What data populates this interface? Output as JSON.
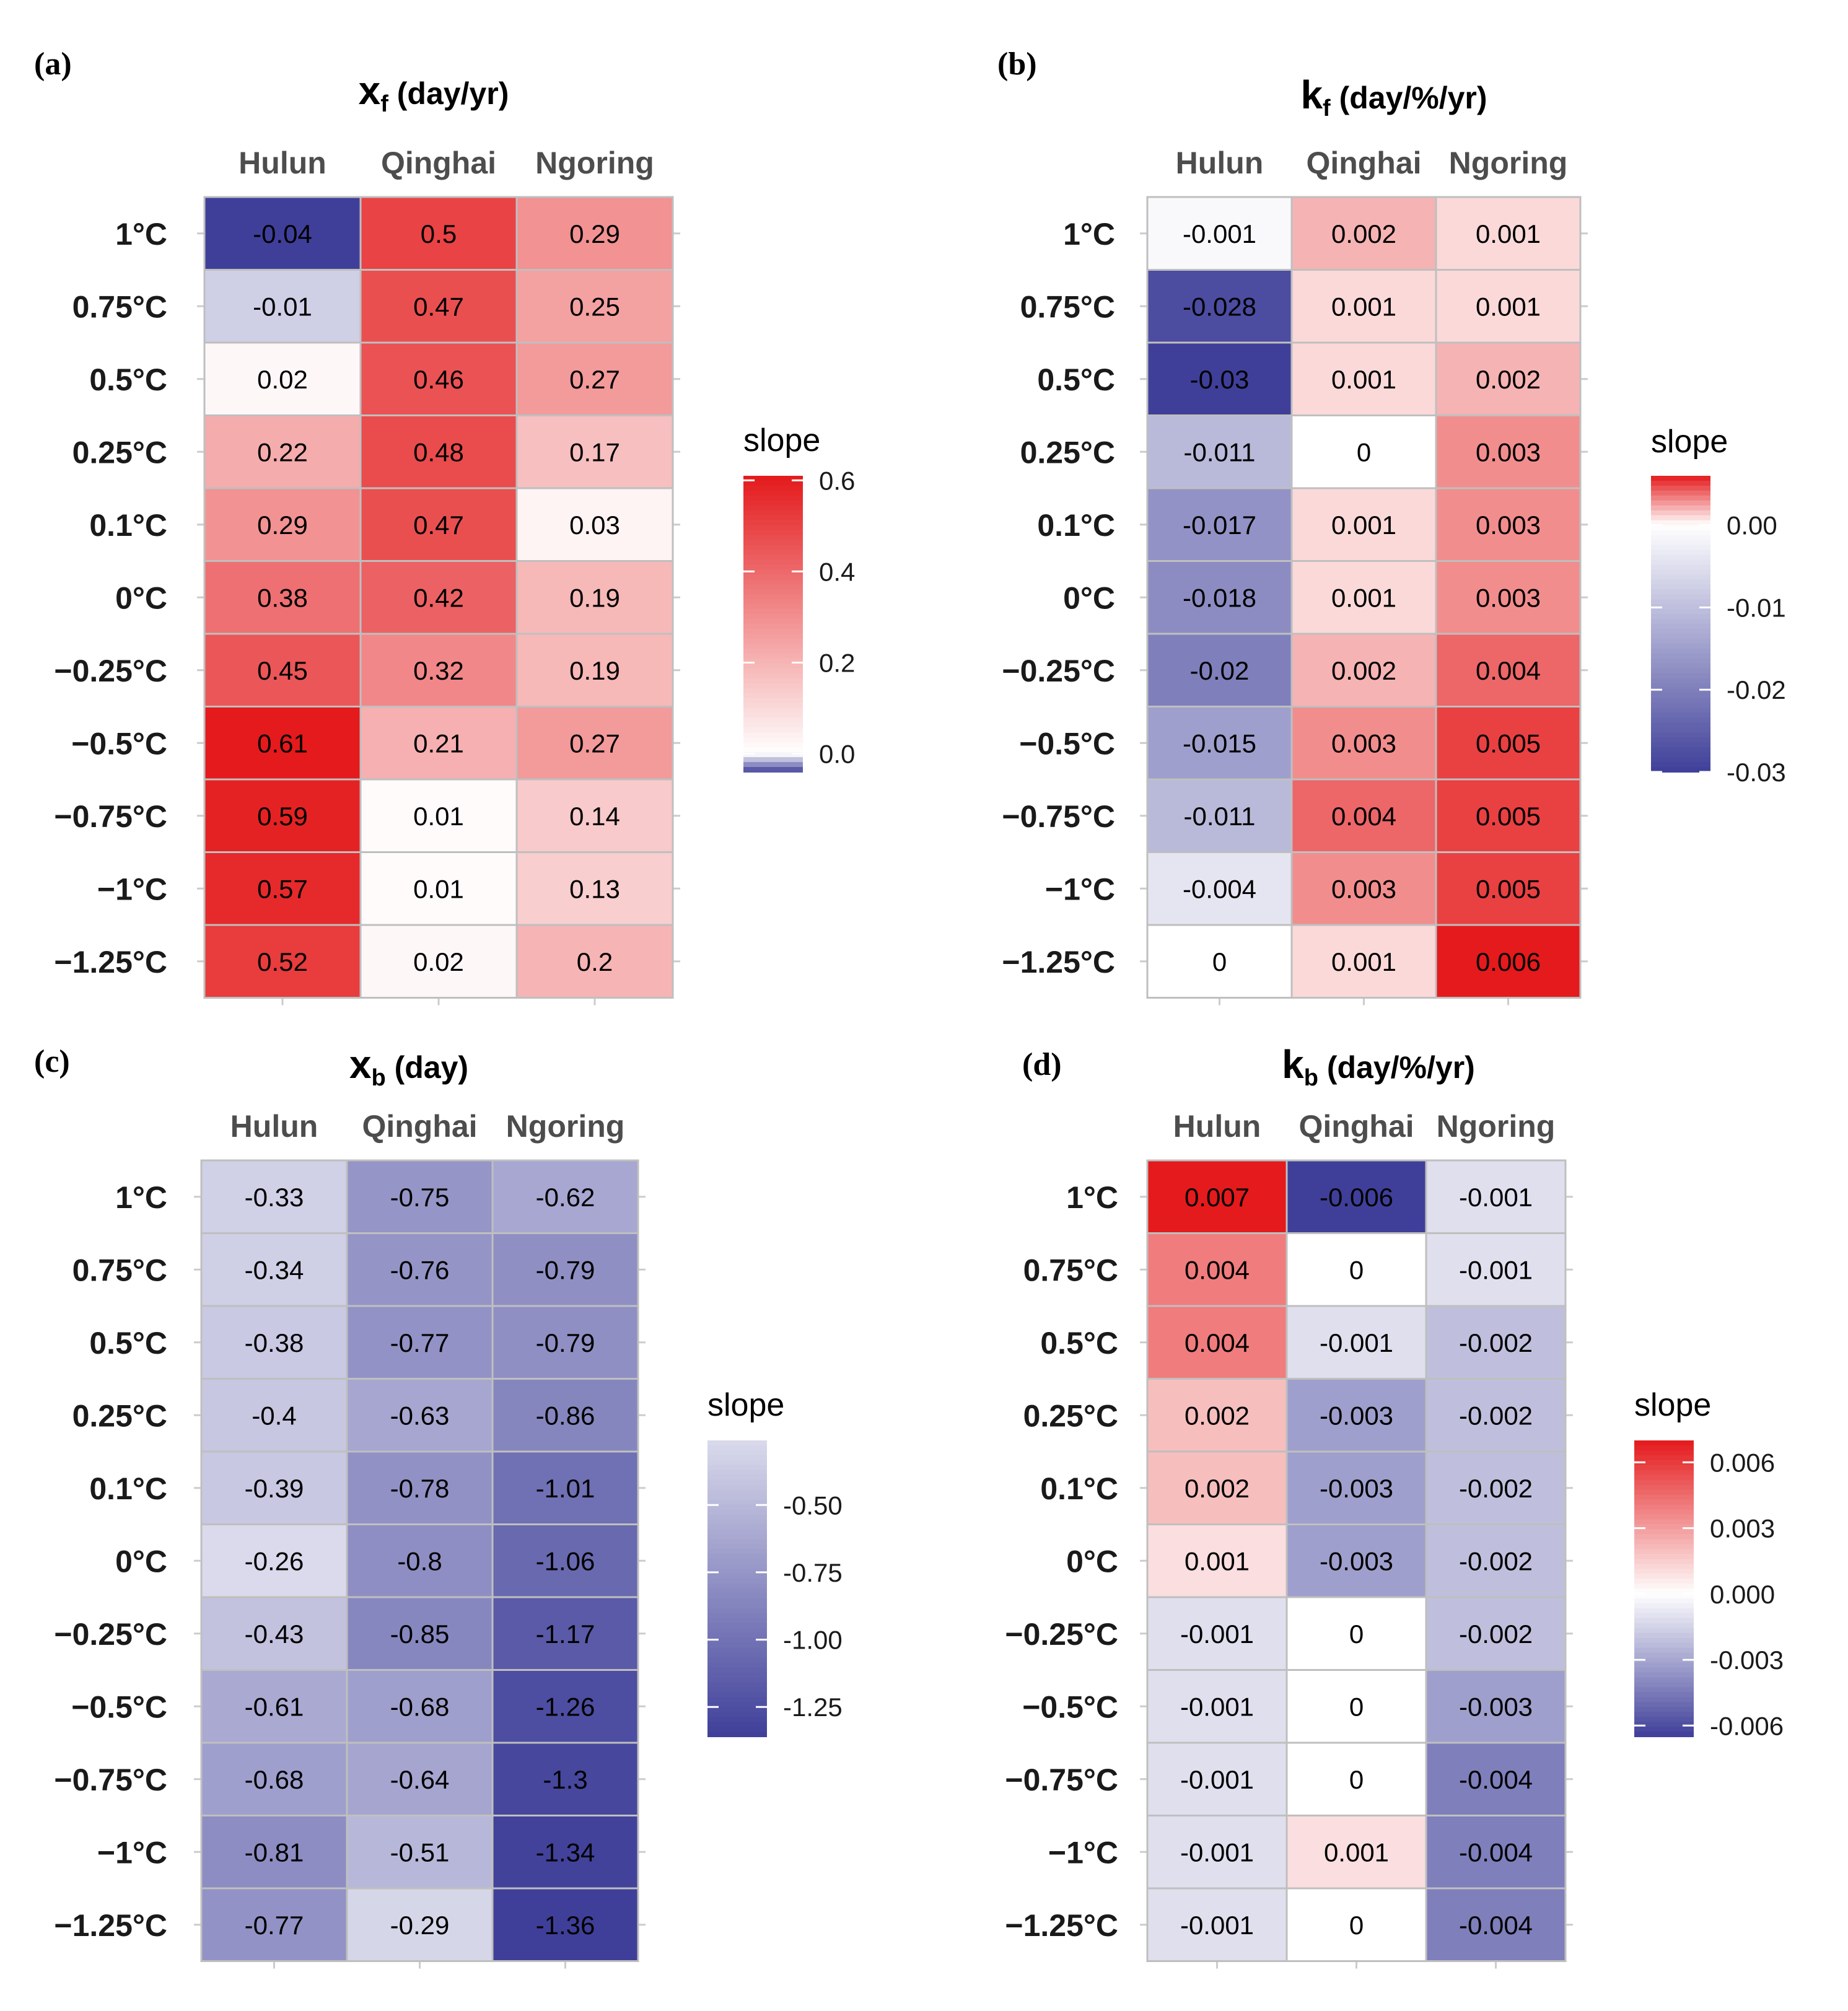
{
  "chart_data": [
    {
      "panel_label": "(a)",
      "type": "heatmap",
      "title": "x",
      "title_sub": "f",
      "title_unit": " (day/yr)",
      "columns": [
        "Hulun",
        "Qinghai",
        "Ngoring"
      ],
      "rows": [
        "1°C",
        "0.75°C",
        "0.5°C",
        "0.25°C",
        "0.1°C",
        "0°C",
        "−0.25°C",
        "−0.5°C",
        "−0.75°C",
        "−1°C",
        "−1.25°C"
      ],
      "values": [
        [
          -0.04,
          0.5,
          0.29
        ],
        [
          -0.01,
          0.47,
          0.25
        ],
        [
          0.02,
          0.46,
          0.27
        ],
        [
          0.22,
          0.48,
          0.17
        ],
        [
          0.29,
          0.47,
          0.03
        ],
        [
          0.38,
          0.42,
          0.19
        ],
        [
          0.45,
          0.32,
          0.19
        ],
        [
          0.61,
          0.21,
          0.27
        ],
        [
          0.59,
          0.01,
          0.14
        ],
        [
          0.57,
          0.01,
          0.13
        ],
        [
          0.52,
          0.02,
          0.2
        ]
      ],
      "value_labels": [
        [
          "-0.04",
          "0.5",
          "0.29"
        ],
        [
          "-0.01",
          "0.47",
          "0.25"
        ],
        [
          "0.02",
          "0.46",
          "0.27"
        ],
        [
          "0.22",
          "0.48",
          "0.17"
        ],
        [
          "0.29",
          "0.47",
          "0.03"
        ],
        [
          "0.38",
          "0.42",
          "0.19"
        ],
        [
          "0.45",
          "0.32",
          "0.19"
        ],
        [
          "0.61",
          "0.21",
          "0.27"
        ],
        [
          "0.59",
          "0.01",
          "0.14"
        ],
        [
          "0.57",
          "0.01",
          "0.13"
        ],
        [
          "0.52",
          "0.02",
          "0.2"
        ]
      ],
      "legend": {
        "title": "slope",
        "min": -0.04,
        "max": 0.61,
        "ticks": [
          0.6,
          0.4,
          0.2,
          0.0
        ],
        "tick_labels": [
          "0.6",
          "0.4",
          "0.2",
          "0.0"
        ]
      }
    },
    {
      "panel_label": "(b)",
      "type": "heatmap",
      "title": "k",
      "title_sub": "f",
      "title_unit": " (day/%/yr)",
      "columns": [
        "Hulun",
        "Qinghai",
        "Ngoring"
      ],
      "rows": [
        "1°C",
        "0.75°C",
        "0.5°C",
        "0.25°C",
        "0.1°C",
        "0°C",
        "−0.25°C",
        "−0.5°C",
        "−0.75°C",
        "−1°C",
        "−1.25°C"
      ],
      "values": [
        [
          -0.001,
          0.002,
          0.001
        ],
        [
          -0.028,
          0.001,
          0.001
        ],
        [
          -0.03,
          0.001,
          0.002
        ],
        [
          -0.011,
          0,
          0.003
        ],
        [
          -0.017,
          0.001,
          0.003
        ],
        [
          -0.018,
          0.001,
          0.003
        ],
        [
          -0.02,
          0.002,
          0.004
        ],
        [
          -0.015,
          0.003,
          0.005
        ],
        [
          -0.011,
          0.004,
          0.005
        ],
        [
          -0.004,
          0.003,
          0.005
        ],
        [
          0,
          0.001,
          0.006
        ]
      ],
      "value_labels": [
        [
          "-0.001",
          "0.002",
          "0.001"
        ],
        [
          "-0.028",
          "0.001",
          "0.001"
        ],
        [
          "-0.03",
          "0.001",
          "0.002"
        ],
        [
          "-0.011",
          "0",
          "0.003"
        ],
        [
          "-0.017",
          "0.001",
          "0.003"
        ],
        [
          "-0.018",
          "0.001",
          "0.003"
        ],
        [
          "-0.02",
          "0.002",
          "0.004"
        ],
        [
          "-0.015",
          "0.003",
          "0.005"
        ],
        [
          "-0.011",
          "0.004",
          "0.005"
        ],
        [
          "-0.004",
          "0.003",
          "0.005"
        ],
        [
          "0",
          "0.001",
          "0.006"
        ]
      ],
      "legend": {
        "title": "slope",
        "min": -0.03,
        "max": 0.006,
        "ticks": [
          0.0,
          -0.01,
          -0.02,
          -0.03
        ],
        "tick_labels": [
          "0.00",
          "-0.01",
          "-0.02",
          "-0.03"
        ]
      }
    },
    {
      "panel_label": "(c)",
      "type": "heatmap",
      "title": "x",
      "title_sub": "b",
      "title_unit": " (day)",
      "columns": [
        "Hulun",
        "Qinghai",
        "Ngoring"
      ],
      "rows": [
        "1°C",
        "0.75°C",
        "0.5°C",
        "0.25°C",
        "0.1°C",
        "0°C",
        "−0.25°C",
        "−0.5°C",
        "−0.75°C",
        "−1°C",
        "−1.25°C"
      ],
      "values": [
        [
          -0.33,
          -0.75,
          -0.62
        ],
        [
          -0.34,
          -0.76,
          -0.79
        ],
        [
          -0.38,
          -0.77,
          -0.79
        ],
        [
          -0.4,
          -0.63,
          -0.86
        ],
        [
          -0.39,
          -0.78,
          -1.01
        ],
        [
          -0.26,
          -0.8,
          -1.06
        ],
        [
          -0.43,
          -0.85,
          -1.17
        ],
        [
          -0.61,
          -0.68,
          -1.26
        ],
        [
          -0.68,
          -0.64,
          -1.3
        ],
        [
          -0.81,
          -0.51,
          -1.34
        ],
        [
          -0.77,
          -0.29,
          -1.36
        ]
      ],
      "value_labels": [
        [
          "-0.33",
          "-0.75",
          "-0.62"
        ],
        [
          "-0.34",
          "-0.76",
          "-0.79"
        ],
        [
          "-0.38",
          "-0.77",
          "-0.79"
        ],
        [
          "-0.4",
          "-0.63",
          "-0.86"
        ],
        [
          "-0.39",
          "-0.78",
          "-1.01"
        ],
        [
          "-0.26",
          "-0.8",
          "-1.06"
        ],
        [
          "-0.43",
          "-0.85",
          "-1.17"
        ],
        [
          "-0.61",
          "-0.68",
          "-1.26"
        ],
        [
          "-0.68",
          "-0.64",
          "-1.3"
        ],
        [
          "-0.81",
          "-0.51",
          "-1.34"
        ],
        [
          "-0.77",
          "-0.29",
          "-1.36"
        ]
      ],
      "legend": {
        "title": "slope",
        "min": -1.36,
        "max": -0.26,
        "ticks": [
          -0.5,
          -0.75,
          -1.0,
          -1.25
        ],
        "tick_labels": [
          "-0.50",
          "-0.75",
          "-1.00",
          "-1.25"
        ]
      }
    },
    {
      "panel_label": "(d)",
      "type": "heatmap",
      "title": "k",
      "title_sub": "b",
      "title_unit": " (day/%/yr)",
      "columns": [
        "Hulun",
        "Qinghai",
        "Ngoring"
      ],
      "rows": [
        "1°C",
        "0.75°C",
        "0.5°C",
        "0.25°C",
        "0.1°C",
        "0°C",
        "−0.25°C",
        "−0.5°C",
        "−0.75°C",
        "−1°C",
        "−1.25°C"
      ],
      "values": [
        [
          0.007,
          -0.006,
          -0.001
        ],
        [
          0.004,
          0,
          -0.001
        ],
        [
          0.004,
          -0.001,
          -0.002
        ],
        [
          0.002,
          -0.003,
          -0.002
        ],
        [
          0.002,
          -0.003,
          -0.002
        ],
        [
          0.001,
          -0.003,
          -0.002
        ],
        [
          -0.001,
          0,
          -0.002
        ],
        [
          -0.001,
          0,
          -0.003
        ],
        [
          -0.001,
          0,
          -0.004
        ],
        [
          -0.001,
          0.001,
          -0.004
        ],
        [
          -0.001,
          0,
          -0.004
        ]
      ],
      "value_labels": [
        [
          "0.007",
          "-0.006",
          "-0.001"
        ],
        [
          "0.004",
          "0",
          "-0.001"
        ],
        [
          "0.004",
          "-0.001",
          "-0.002"
        ],
        [
          "0.002",
          "-0.003",
          "-0.002"
        ],
        [
          "0.002",
          "-0.003",
          "-0.002"
        ],
        [
          "0.001",
          "-0.003",
          "-0.002"
        ],
        [
          "-0.001",
          "0",
          "-0.002"
        ],
        [
          "-0.001",
          "0",
          "-0.003"
        ],
        [
          "-0.001",
          "0",
          "-0.004"
        ],
        [
          "-0.001",
          "0.001",
          "-0.004"
        ],
        [
          "-0.001",
          "0",
          "-0.004"
        ]
      ],
      "legend": {
        "title": "slope",
        "min": -0.0065,
        "max": 0.007,
        "ticks": [
          0.006,
          0.003,
          0.0,
          -0.003,
          -0.006
        ],
        "tick_labels": [
          "0.006",
          "0.003",
          "0.000",
          "-0.003",
          "-0.006"
        ]
      }
    }
  ],
  "colors": {
    "high": "#e41a1c",
    "mid": "#ffffff",
    "low": "#3f3f9a",
    "cell_border": "#bfbfbf",
    "tick_mark": "#cccccc"
  }
}
